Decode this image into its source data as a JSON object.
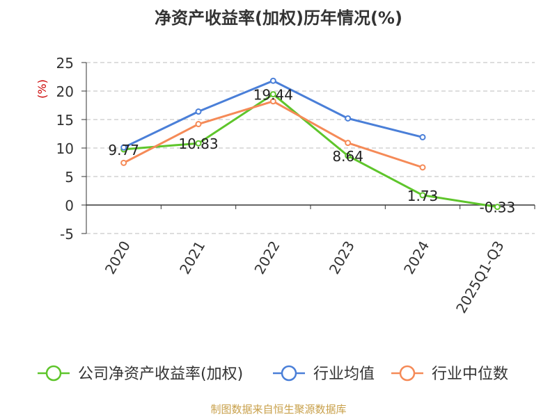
{
  "chart_data": {
    "type": "line",
    "title": "净资产收益率(加权)历年情况(%)",
    "ylabel": "(%)",
    "categories": [
      "2020",
      "2021",
      "2022",
      "2023",
      "2024",
      "2025Q1-Q3"
    ],
    "ylim": [
      -5,
      25
    ],
    "yticks": [
      25,
      20,
      15,
      10,
      5,
      0,
      -5
    ],
    "ytick_labels": [
      "25",
      "20",
      "15",
      "10",
      "5",
      "0",
      "-5"
    ],
    "grid": true,
    "legend_position": "bottom",
    "series": [
      {
        "name": "公司净资产收益率(加权)",
        "color": "#5ec52b",
        "values": [
          9.77,
          10.83,
          19.44,
          8.64,
          1.73,
          -0.33
        ],
        "labels": [
          "9.77",
          "10.83",
          "19.44",
          "8.64",
          "1.73",
          "-0.33"
        ]
      },
      {
        "name": "行业均值",
        "color": "#4a7fd8",
        "values": [
          10.1,
          16.4,
          21.8,
          15.2,
          11.9,
          null
        ]
      },
      {
        "name": "行业中位数",
        "color": "#f58a57",
        "values": [
          7.4,
          14.2,
          18.2,
          10.9,
          6.6,
          null
        ]
      }
    ],
    "source": "制图数据来自恒生聚源数据库"
  },
  "colors": {
    "title": "#333333",
    "ylabel": "#cc0000",
    "grid": "#bbbbbb",
    "axis": "#333333",
    "source": "#c8a04a"
  }
}
